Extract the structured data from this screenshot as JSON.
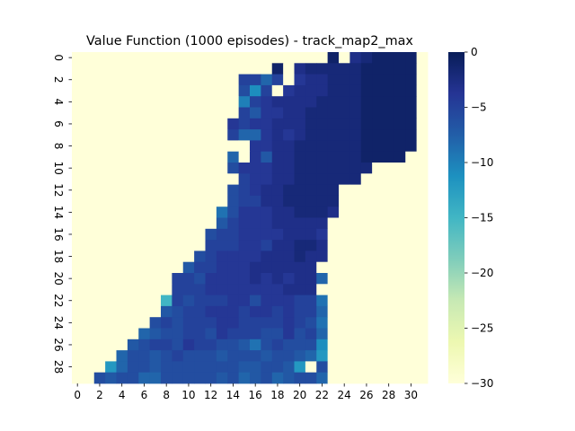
{
  "chart_data": {
    "type": "heatmap",
    "title": "Value Function (1000 episodes) - track_map2_max",
    "xlabel": "",
    "ylabel": "",
    "rows": 30,
    "cols": 32,
    "x_ticks": [
      "0",
      "2",
      "4",
      "6",
      "8",
      "10",
      "12",
      "14",
      "16",
      "18",
      "20",
      "22",
      "24",
      "26",
      "28",
      "30"
    ],
    "y_ticks": [
      "0",
      "2",
      "4",
      "6",
      "8",
      "10",
      "12",
      "14",
      "16",
      "18",
      "20",
      "22",
      "24",
      "26",
      "28"
    ],
    "colorbar": {
      "ticks": [
        "0",
        "−5",
        "−10",
        "−15",
        "−20",
        "−25",
        "−30"
      ],
      "tick_values": [
        0,
        -5,
        -10,
        -15,
        -20,
        -25,
        -30
      ],
      "vmin": -30,
      "vmax": 0,
      "colormap": "YlGnBu_r"
    },
    "values": [
      [
        -30,
        -30,
        -30,
        -30,
        -30,
        -30,
        -30,
        -30,
        -30,
        -30,
        -30,
        -30,
        -30,
        -30,
        -30,
        -30,
        -30,
        -30,
        -30,
        -30,
        -30,
        -30,
        -30,
        -1,
        -30,
        -3,
        -2,
        -1,
        -1,
        -1,
        -1,
        -30
      ],
      [
        -30,
        -30,
        -30,
        -30,
        -30,
        -30,
        -30,
        -30,
        -30,
        -30,
        -30,
        -30,
        -30,
        -30,
        -30,
        -30,
        -30,
        -30,
        -1,
        -30,
        -3,
        -2,
        -2,
        -2,
        -2,
        -2,
        -1,
        -1,
        -1,
        -1,
        -1,
        -30
      ],
      [
        -30,
        -30,
        -30,
        -30,
        -30,
        -30,
        -30,
        -30,
        -30,
        -30,
        -30,
        -30,
        -30,
        -30,
        -30,
        -5,
        -5,
        -8,
        -5,
        -30,
        -4,
        -3,
        -3,
        -2,
        -2,
        -2,
        -1,
        -1,
        -1,
        -1,
        -1,
        -30
      ],
      [
        -30,
        -30,
        -30,
        -30,
        -30,
        -30,
        -30,
        -30,
        -30,
        -30,
        -30,
        -30,
        -30,
        -30,
        -30,
        -6,
        -11,
        -5,
        -30,
        -4,
        -3,
        -3,
        -3,
        -2,
        -2,
        -2,
        -1,
        -1,
        -1,
        -1,
        -1,
        -30
      ],
      [
        -30,
        -30,
        -30,
        -30,
        -30,
        -30,
        -30,
        -30,
        -30,
        -30,
        -30,
        -30,
        -30,
        -30,
        -30,
        -10,
        -5,
        -4,
        -3,
        -3,
        -3,
        -3,
        -2,
        -2,
        -2,
        -2,
        -1,
        -1,
        -1,
        -1,
        -1,
        -30
      ],
      [
        -30,
        -30,
        -30,
        -30,
        -30,
        -30,
        -30,
        -30,
        -30,
        -30,
        -30,
        -30,
        -30,
        -30,
        -30,
        -5,
        -7,
        -4,
        -4,
        -3,
        -3,
        -2,
        -2,
        -2,
        -2,
        -2,
        -1,
        -1,
        -1,
        -1,
        -1,
        -30
      ],
      [
        -30,
        -30,
        -30,
        -30,
        -30,
        -30,
        -30,
        -30,
        -30,
        -30,
        -30,
        -30,
        -30,
        -30,
        -4,
        -5,
        -4,
        -4,
        -3,
        -3,
        -3,
        -2,
        -2,
        -2,
        -2,
        -2,
        -1,
        -1,
        -1,
        -1,
        -1,
        -30
      ],
      [
        -30,
        -30,
        -30,
        -30,
        -30,
        -30,
        -30,
        -30,
        -30,
        -30,
        -30,
        -30,
        -30,
        -30,
        -5,
        -8,
        -8,
        -4,
        -3,
        -4,
        -3,
        -2,
        -2,
        -2,
        -2,
        -2,
        -1,
        -1,
        -1,
        -1,
        -1,
        -30
      ],
      [
        -30,
        -30,
        -30,
        -30,
        -30,
        -30,
        -30,
        -30,
        -30,
        -30,
        -30,
        -30,
        -30,
        -30,
        -30,
        -30,
        -4,
        -4,
        -3,
        -3,
        -2,
        -2,
        -2,
        -2,
        -2,
        -2,
        -1,
        -1,
        -1,
        -1,
        -1,
        -30
      ],
      [
        -30,
        -30,
        -30,
        -30,
        -30,
        -30,
        -30,
        -30,
        -30,
        -30,
        -30,
        -30,
        -30,
        -30,
        -8,
        -30,
        -4,
        -7,
        -3,
        -3,
        -2,
        -2,
        -2,
        -2,
        -2,
        -2,
        -1,
        -1,
        -1,
        -1,
        -30,
        -30
      ],
      [
        -30,
        -30,
        -30,
        -30,
        -30,
        -30,
        -30,
        -30,
        -30,
        -30,
        -30,
        -30,
        -30,
        -30,
        -6,
        -4,
        -4,
        -4,
        -3,
        -3,
        -2,
        -2,
        -2,
        -2,
        -2,
        -2,
        -2,
        -30,
        -30,
        -30,
        -30,
        -30
      ],
      [
        -30,
        -30,
        -30,
        -30,
        -30,
        -30,
        -30,
        -30,
        -30,
        -30,
        -30,
        -30,
        -30,
        -30,
        -30,
        -5,
        -4,
        -4,
        -3,
        -3,
        -2,
        -2,
        -2,
        -2,
        -2,
        -2,
        -30,
        -30,
        -30,
        -30,
        -30,
        -30
      ],
      [
        -30,
        -30,
        -30,
        -30,
        -30,
        -30,
        -30,
        -30,
        -30,
        -30,
        -30,
        -30,
        -30,
        -30,
        -6,
        -5,
        -4,
        -3,
        -3,
        -2,
        -2,
        -2,
        -2,
        -2,
        -30,
        -30,
        -30,
        -30,
        -30,
        -30,
        -30,
        -30
      ],
      [
        -30,
        -30,
        -30,
        -30,
        -30,
        -30,
        -30,
        -30,
        -30,
        -30,
        -30,
        -30,
        -30,
        -30,
        -6,
        -5,
        -5,
        -3,
        -3,
        -2,
        -2,
        -2,
        -2,
        -2,
        -30,
        -30,
        -30,
        -30,
        -30,
        -30,
        -30,
        -30
      ],
      [
        -30,
        -30,
        -30,
        -30,
        -30,
        -30,
        -30,
        -30,
        -30,
        -30,
        -30,
        -30,
        -30,
        -9,
        -6,
        -4,
        -4,
        -4,
        -3,
        -3,
        -2,
        -2,
        -2,
        -3,
        -30,
        -30,
        -30,
        -30,
        -30,
        -30,
        -30,
        -30
      ],
      [
        -30,
        -30,
        -30,
        -30,
        -30,
        -30,
        -30,
        -30,
        -30,
        -30,
        -30,
        -30,
        -30,
        -7,
        -5,
        -4,
        -4,
        -4,
        -3,
        -3,
        -3,
        -3,
        -3,
        -30,
        -30,
        -30,
        -30,
        -30,
        -30,
        -30,
        -30,
        -30
      ],
      [
        -30,
        -30,
        -30,
        -30,
        -30,
        -30,
        -30,
        -30,
        -30,
        -30,
        -30,
        -30,
        -6,
        -5,
        -5,
        -4,
        -4,
        -4,
        -4,
        -3,
        -3,
        -3,
        -4,
        -30,
        -30,
        -30,
        -30,
        -30,
        -30,
        -30,
        -30,
        -30
      ],
      [
        -30,
        -30,
        -30,
        -30,
        -30,
        -30,
        -30,
        -30,
        -30,
        -30,
        -30,
        -30,
        -5,
        -5,
        -5,
        -4,
        -4,
        -5,
        -3,
        -3,
        -2,
        -2,
        -3,
        -30,
        -30,
        -30,
        -30,
        -30,
        -30,
        -30,
        -30,
        -30
      ],
      [
        -30,
        -30,
        -30,
        -30,
        -30,
        -30,
        -30,
        -30,
        -30,
        -30,
        -30,
        -6,
        -5,
        -4,
        -4,
        -4,
        -4,
        -3,
        -3,
        -3,
        -2,
        -3,
        -3,
        -30,
        -30,
        -30,
        -30,
        -30,
        -30,
        -30,
        -30,
        -30
      ],
      [
        -30,
        -30,
        -30,
        -30,
        -30,
        -30,
        -30,
        -30,
        -30,
        -30,
        -7,
        -5,
        -5,
        -4,
        -4,
        -4,
        -3,
        -3,
        -3,
        -3,
        -3,
        -3,
        -30,
        -30,
        -30,
        -30,
        -30,
        -30,
        -30,
        -30,
        -30,
        -30
      ],
      [
        -30,
        -30,
        -30,
        -30,
        -30,
        -30,
        -30,
        -30,
        -30,
        -5,
        -5,
        -6,
        -4,
        -4,
        -4,
        -4,
        -3,
        -4,
        -3,
        -4,
        -3,
        -3,
        -8,
        -30,
        -30,
        -30,
        -30,
        -30,
        -30,
        -30,
        -30,
        -30
      ],
      [
        -30,
        -30,
        -30,
        -30,
        -30,
        -30,
        -30,
        -30,
        -30,
        -5,
        -5,
        -5,
        -4,
        -4,
        -4,
        -4,
        -4,
        -4,
        -4,
        -3,
        -3,
        -3,
        -30,
        -30,
        -30,
        -30,
        -30,
        -30,
        -30,
        -30,
        -30,
        -30
      ],
      [
        -30,
        -30,
        -30,
        -30,
        -30,
        -30,
        -30,
        -30,
        -15,
        -5,
        -6,
        -5,
        -5,
        -5,
        -4,
        -4,
        -6,
        -4,
        -4,
        -4,
        -5,
        -5,
        -9,
        -30,
        -30,
        -30,
        -30,
        -30,
        -30,
        -30,
        -30,
        -30
      ],
      [
        -30,
        -30,
        -30,
        -30,
        -30,
        -30,
        -30,
        -30,
        -7,
        -6,
        -5,
        -5,
        -4,
        -4,
        -4,
        -5,
        -4,
        -4,
        -5,
        -4,
        -5,
        -5,
        -8,
        -30,
        -30,
        -30,
        -30,
        -30,
        -30,
        -30,
        -30,
        -30
      ],
      [
        -30,
        -30,
        -30,
        -30,
        -30,
        -30,
        -30,
        -6,
        -5,
        -6,
        -5,
        -5,
        -5,
        -4,
        -4,
        -5,
        -5,
        -5,
        -5,
        -4,
        -5,
        -6,
        -9,
        -30,
        -30,
        -30,
        -30,
        -30,
        -30,
        -30,
        -30,
        -30
      ],
      [
        -30,
        -30,
        -30,
        -30,
        -30,
        -30,
        -8,
        -7,
        -6,
        -6,
        -5,
        -5,
        -6,
        -4,
        -5,
        -5,
        -5,
        -6,
        -6,
        -4,
        -6,
        -5,
        -8,
        -30,
        -30,
        -30,
        -30,
        -30,
        -30,
        -30,
        -30,
        -30
      ],
      [
        -30,
        -30,
        -30,
        -30,
        -30,
        -7,
        -6,
        -5,
        -5,
        -6,
        -4,
        -5,
        -5,
        -6,
        -6,
        -7,
        -9,
        -6,
        -5,
        -6,
        -6,
        -6,
        -11,
        -30,
        -30,
        -30,
        -30,
        -30,
        -30,
        -30,
        -30,
        -30
      ],
      [
        -30,
        -30,
        -30,
        -30,
        -8,
        -6,
        -6,
        -7,
        -6,
        -5,
        -6,
        -6,
        -6,
        -7,
        -6,
        -6,
        -6,
        -7,
        -6,
        -6,
        -7,
        -8,
        -12,
        -30,
        -30,
        -30,
        -30,
        -30,
        -30,
        -30,
        -30,
        -30
      ],
      [
        -30,
        -30,
        -30,
        -12,
        -8,
        -6,
        -6,
        -7,
        -6,
        -6,
        -6,
        -6,
        -6,
        -6,
        -6,
        -7,
        -7,
        -6,
        -6,
        -7,
        -12,
        -30,
        -6,
        -30,
        -30,
        -30,
        -30,
        -30,
        -30,
        -30,
        -30,
        -30
      ],
      [
        -30,
        -30,
        -6,
        -7,
        -6,
        -6,
        -8,
        -8,
        -6,
        -6,
        -6,
        -6,
        -6,
        -7,
        -6,
        -8,
        -7,
        -6,
        -8,
        -7,
        -6,
        -6,
        -8,
        -30,
        -30,
        -30,
        -30,
        -30,
        -30,
        -30,
        -30,
        -30
      ]
    ]
  }
}
